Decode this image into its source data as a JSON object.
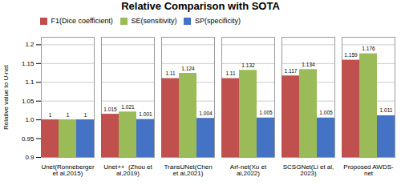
{
  "chart_data": {
    "type": "bar",
    "title": "Relative Comparison with SOTA",
    "ylabel": "Relative value to U-net",
    "categories": [
      "Unet(Ronneberger\net al,2015)",
      "Unet++  (Zhou et\nal,2019)",
      "TransUNet(Chen\net al,2021)",
      "Arf-net(Xu et\nal,2022)",
      "SCSGNet(Li et al,\n2023)",
      "Proposed AWDS-\nnet"
    ],
    "series": [
      {
        "name": "F1(Dice coefficient)",
        "color": "#c0504d",
        "values": [
          1.0,
          1.015,
          1.11,
          1.11,
          1.117,
          1.159
        ]
      },
      {
        "name": "SE(sensitivity)",
        "color": "#9bbb59",
        "values": [
          1.0,
          1.021,
          1.124,
          1.132,
          1.134,
          1.176
        ]
      },
      {
        "name": "SP(specificity)",
        "color": "#4472c4",
        "values": [
          1.0,
          1.001,
          1.004,
          1.005,
          1.005,
          1.011
        ]
      }
    ],
    "ylim": [
      0.9,
      1.22
    ],
    "yticks": [
      0.9,
      0.95,
      {
        "value": 1.0,
        "label": "1.0"
      },
      1.05,
      1.1,
      1.15,
      1.2
    ],
    "grid": true,
    "legend": "upper left",
    "data_labels": true
  }
}
